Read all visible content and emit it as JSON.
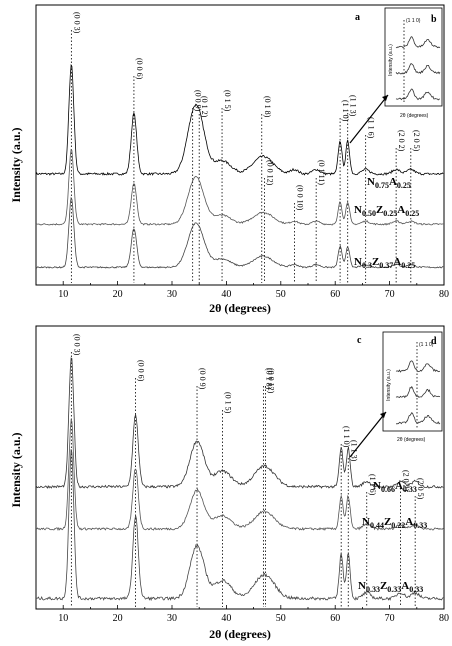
{
  "chart_data": [
    {
      "type": "line",
      "panel_label": "a",
      "xlabel": "2θ (degrees)",
      "ylabel": "Intensity (a.u.)",
      "xlim": [
        5,
        80
      ],
      "xticks": [
        10,
        20,
        30,
        40,
        50,
        60,
        70,
        80
      ],
      "peaks": [
        {
          "label": "(0 0 3)",
          "x": 11.5
        },
        {
          "label": "(0 0 6)",
          "x": 23.0
        },
        {
          "label": "(0 0 9)",
          "x": 33.8
        },
        {
          "label": "(0 1 2)",
          "x": 35.0
        },
        {
          "label": "(0 1 5)",
          "x": 39.2
        },
        {
          "label": "(0 1 8)",
          "x": 46.5
        },
        {
          "label": "(0 0 12)",
          "x": 47.0
        },
        {
          "label": "(0 0 10)",
          "x": 52.5
        },
        {
          "label": "(0 1 11)",
          "x": 56.5
        },
        {
          "label": "(1 1 0)",
          "x": 60.9
        },
        {
          "label": "(1 1 3)",
          "x": 62.3
        },
        {
          "label": "(1 1 6)",
          "x": 65.6
        },
        {
          "label": "(2 0 2)",
          "x": 71.2
        },
        {
          "label": "(2 0 5)",
          "x": 73.9
        }
      ],
      "series": [
        {
          "name": "N0.75A0.25",
          "color": "#000000",
          "offset": 2.0
        },
        {
          "name": "N0.50Z0.25A0.25",
          "color": "#555555",
          "offset": 1.0
        },
        {
          "name": "N0.3Z0.37A0.25",
          "color": "#444444",
          "offset": 0.0
        }
      ],
      "inset": {
        "label": "b",
        "ylabel": "Intensity (a.u.)",
        "xlabel": "2θ (degrees)",
        "peak_label": "(1 1 0)"
      }
    },
    {
      "type": "line",
      "panel_label": "c",
      "xlabel": "2θ (degrees)",
      "ylabel": "Intensity (a.u.)",
      "xlim": [
        5,
        80
      ],
      "xticks": [
        10,
        20,
        30,
        40,
        50,
        60,
        70,
        80
      ],
      "peaks": [
        {
          "label": "(0 0 3)",
          "x": 11.5
        },
        {
          "label": "(0 0 6)",
          "x": 23.3
        },
        {
          "label": "(0 0 9)",
          "x": 34.6
        },
        {
          "label": "(0 1 5)",
          "x": 39.3
        },
        {
          "label": "(0 1 8)",
          "x": 46.8
        },
        {
          "label": "(0 0 12)",
          "x": 47.2
        },
        {
          "label": "(1 1 0)",
          "x": 61.1
        },
        {
          "label": "(1 1 3)",
          "x": 62.4
        },
        {
          "label": "(1 1 6)",
          "x": 65.8
        },
        {
          "label": "(2 0 2)",
          "x": 72.0
        },
        {
          "label": "(2 0 5)",
          "x": 74.7
        }
      ],
      "series": [
        {
          "name": "N0.66A0.33",
          "color": "#333333",
          "offset": 2.0
        },
        {
          "name": "N0.44Z0.22A0.33",
          "color": "#555555",
          "offset": 1.0
        },
        {
          "name": "N0.33Z0.33A0.33",
          "color": "#444444",
          "offset": 0.0
        }
      ],
      "inset": {
        "label": "d",
        "ylabel": "Intensity (a.u.)",
        "xlabel": "2θ (degrees)",
        "peak_label": "(1 1 0)"
      }
    }
  ],
  "text": {
    "a": "a",
    "b": "b",
    "c": "c",
    "d": "d",
    "xlabel": "2θ (degrees)",
    "ylabel": "Intensity (a.u.)",
    "comp_a1": {
      "main": "N",
      "s1": "0.75",
      "b": "A",
      "s2": "0.25"
    },
    "comp_a2": {
      "main": "N",
      "s1": "0.50",
      "b": "Z",
      "s2": "0.25",
      "c": "A",
      "s3": "0.25"
    },
    "comp_a3": {
      "main": "N",
      "s1": "0.3",
      "b": "Z",
      "s2": "0.37",
      "c": "A",
      "s3": "0.25"
    },
    "comp_c1": {
      "main": "N",
      "s1": "0.66",
      "b": "A",
      "s2": "0.33"
    },
    "comp_c2": {
      "main": "N",
      "s1": "0.44",
      "b": "Z",
      "s2": "0.22",
      "c": "A",
      "s3": "0.33"
    },
    "comp_c3": {
      "main": "N",
      "s1": "0.33",
      "b": "Z",
      "s2": "0.33",
      "c": "A",
      "s3": "0.33"
    }
  }
}
